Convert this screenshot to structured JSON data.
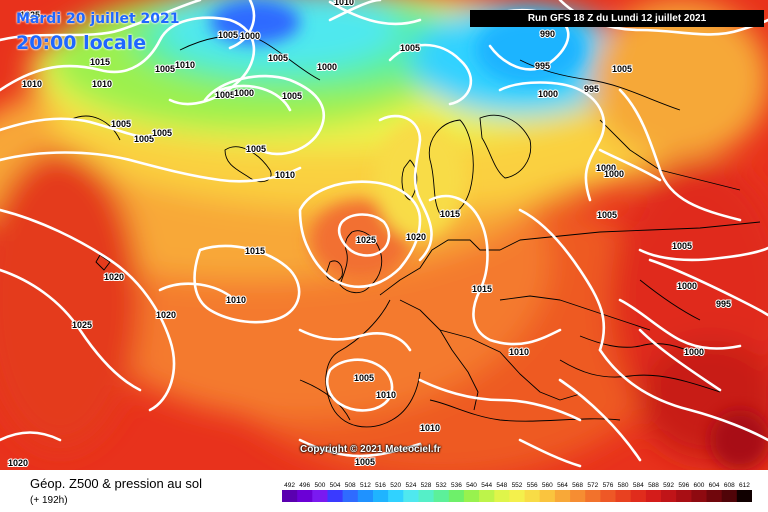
{
  "header": {
    "date_text": "Mardi 20 juillet 2021",
    "time_text": "20:00 locale",
    "run_text": "Run GFS 18 Z du Lundi 12 juillet 2021"
  },
  "footer": {
    "title": "Géop. Z500 & pression au sol",
    "subtitle": "(+ 192h)",
    "copyright": "Copyright © 2021 Meteociel.fr"
  },
  "scale": {
    "values": [
      "492",
      "496",
      "500",
      "504",
      "508",
      "512",
      "516",
      "520",
      "524",
      "528",
      "532",
      "536",
      "540",
      "544",
      "548",
      "552",
      "556",
      "560",
      "564",
      "568",
      "572",
      "576",
      "580",
      "584",
      "588",
      "592",
      "596",
      "600",
      "604",
      "608",
      "612"
    ],
    "colors": [
      "#5a00b0",
      "#6b00d6",
      "#7a1af0",
      "#3a3aff",
      "#2f6bff",
      "#1f92ff",
      "#1fb4ff",
      "#30d2ff",
      "#4fe8ef",
      "#55efc8",
      "#5cf09a",
      "#6ef06a",
      "#98f24e",
      "#bdf44a",
      "#dff54a",
      "#f4f04c",
      "#f8dc46",
      "#fac43e",
      "#f8a838",
      "#f68d32",
      "#f2722c",
      "#ee5826",
      "#e84120",
      "#e02c1c",
      "#d41c1a",
      "#c01418",
      "#a80e14",
      "#8e0a10",
      "#70060c",
      "#500408",
      "#100000"
    ]
  },
  "isobar_labels": [
    "1025",
    "1005",
    "1000",
    "1010",
    "1015",
    "1010",
    "1010",
    "1010",
    "1005",
    "1005",
    "1005",
    "1005",
    "1000",
    "1005",
    "1005",
    "1005",
    "1005",
    "1010",
    "1005",
    "1000",
    "995",
    "995",
    "990",
    "1000",
    "1005",
    "1000",
    "1000",
    "1005",
    "1015",
    "1025",
    "1020",
    "1015",
    "1020",
    "1010",
    "1020",
    "1025",
    "1015",
    "1010",
    "1005",
    "1000",
    "995",
    "1000",
    "1005",
    "1010",
    "1010",
    "1020",
    "1005"
  ]
}
